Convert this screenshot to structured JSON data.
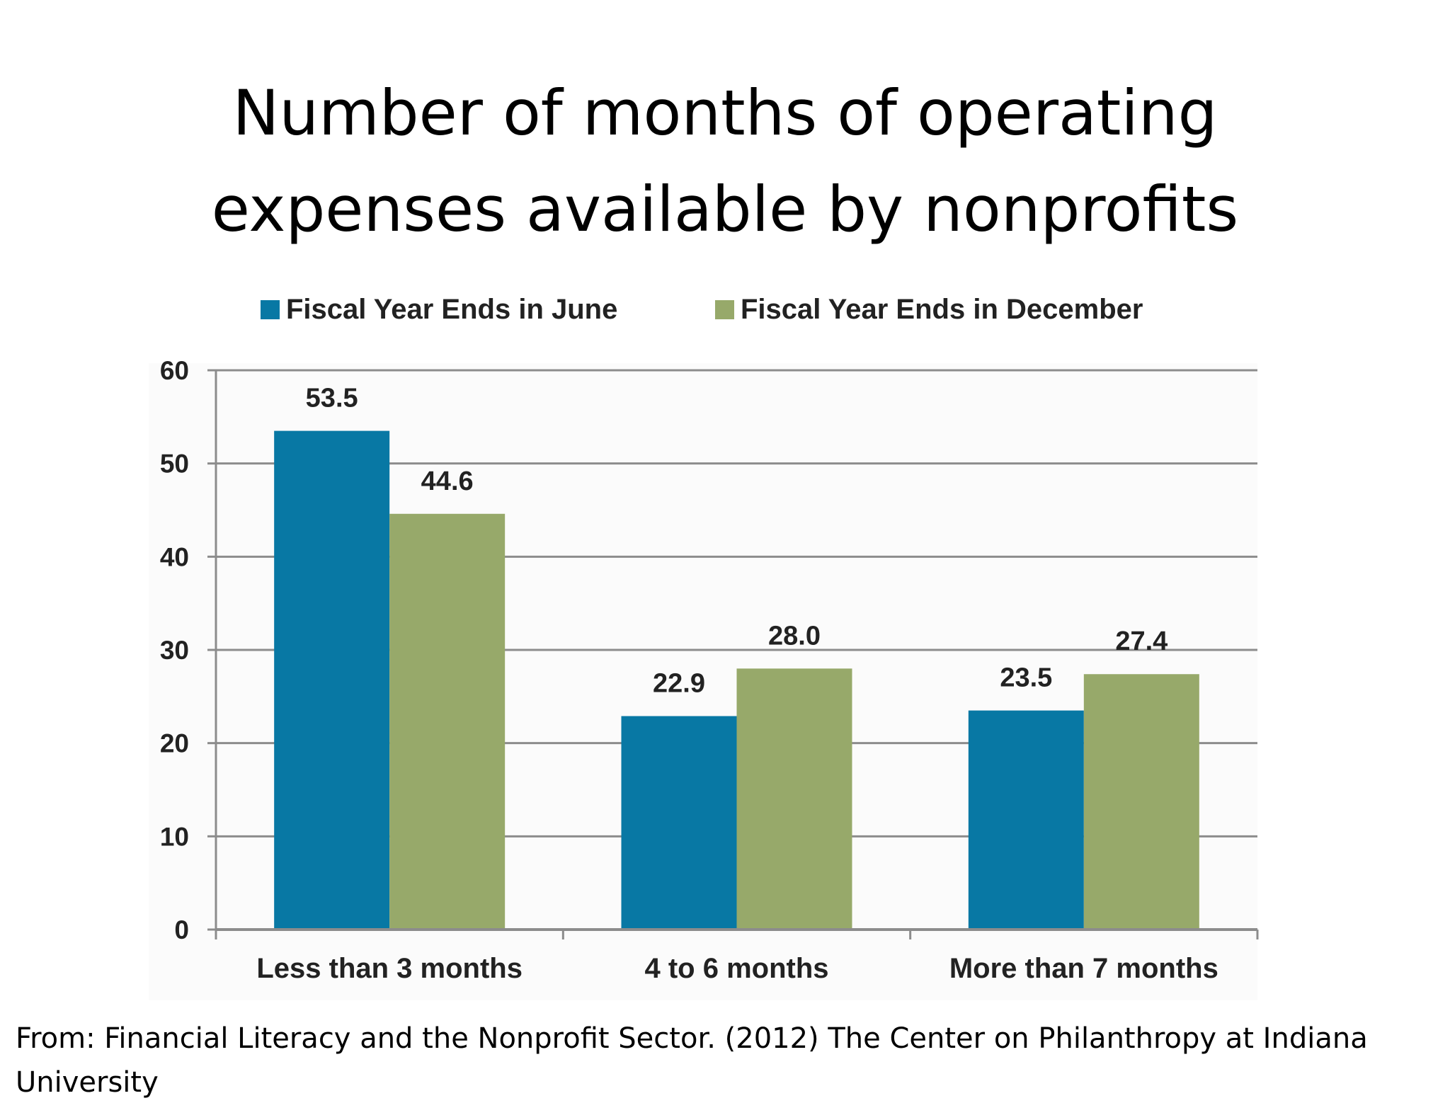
{
  "slide": {
    "title_line1": "Number of months of operating",
    "title_line2": "expenses available by nonprofits",
    "source_line1": "From: Financial Literacy and the Nonprofit Sector. (2012) The Center on Philanthropy at Indiana",
    "source_line2": "University"
  },
  "chart_data": {
    "type": "bar",
    "title": "",
    "xlabel": "",
    "ylabel": "",
    "categories": [
      "Less than 3 months",
      "4 to 6 months",
      "More than 7 months"
    ],
    "series": [
      {
        "name": "Fiscal Year Ends in June",
        "color": "#0878A4",
        "values": [
          53.5,
          22.9,
          23.5
        ],
        "labels": [
          "53.5",
          "22.9",
          "23.5"
        ]
      },
      {
        "name": "Fiscal Year Ends in December",
        "color": "#97A96A",
        "values": [
          44.6,
          28.0,
          27.4
        ],
        "labels": [
          "44.6",
          "28.0",
          "27.4"
        ]
      }
    ],
    "ylim": [
      0,
      60
    ],
    "yticks": [
      0,
      10,
      20,
      30,
      40,
      50,
      60
    ],
    "grid": true,
    "legend_position": "top-center"
  }
}
